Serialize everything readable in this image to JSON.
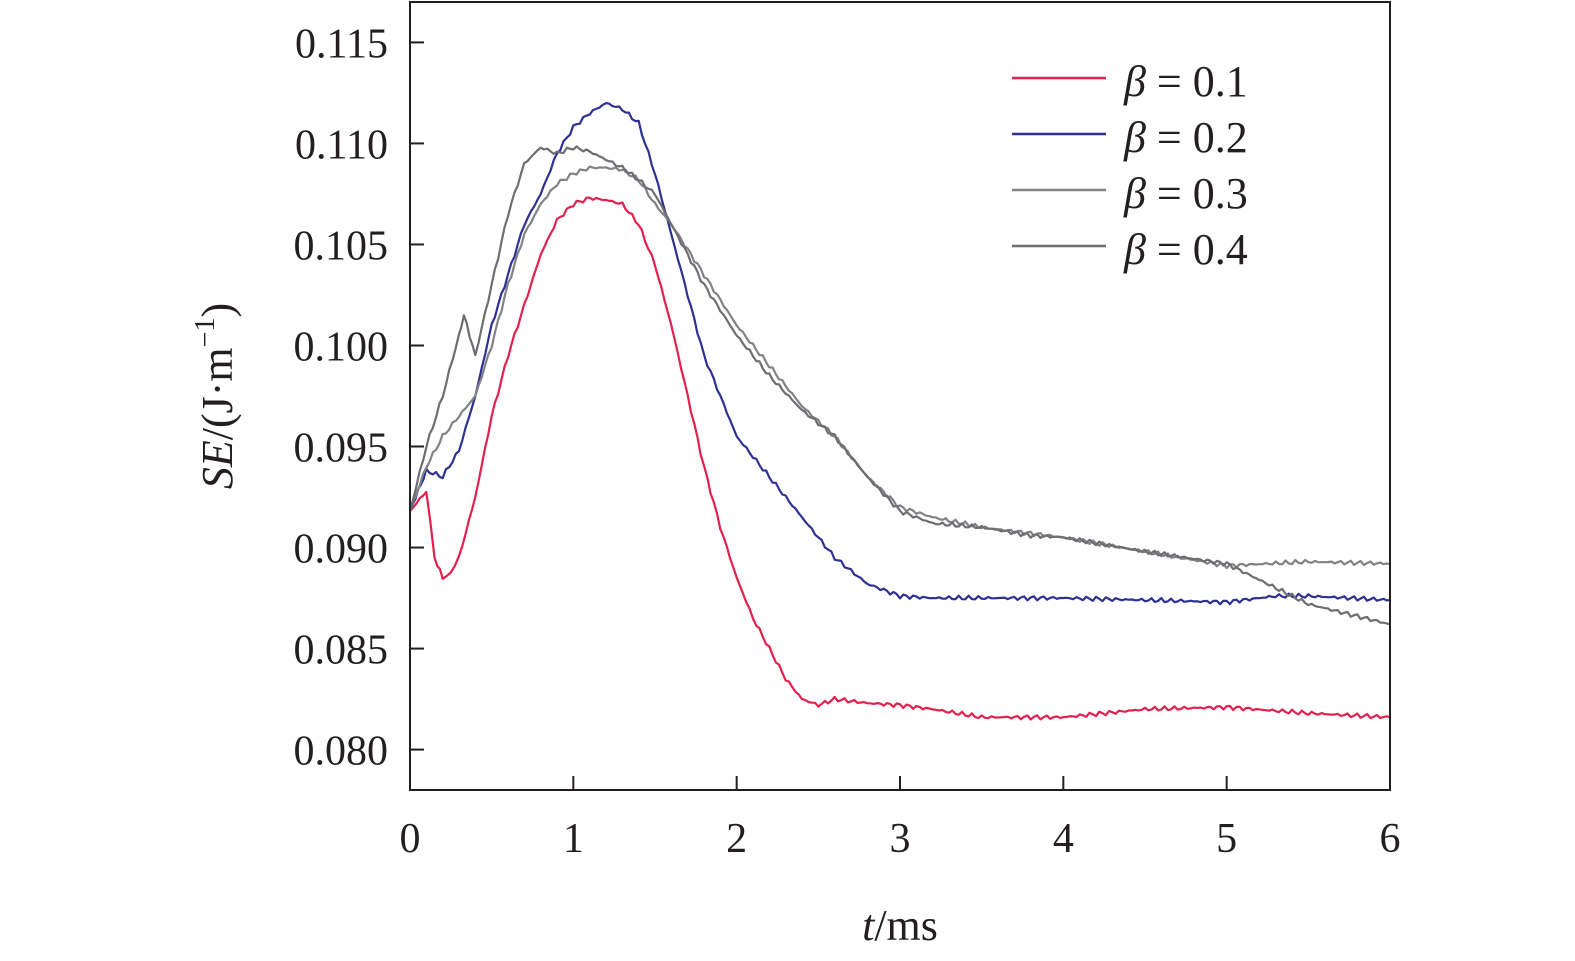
{
  "chart_data": {
    "type": "line",
    "title": "",
    "xlabel": {
      "italic": "t",
      "rest": "/ms"
    },
    "ylabel": {
      "italic": "SE",
      "rest": "/(J·m",
      "sup": "−1",
      "close": ")"
    },
    "xlim": [
      0,
      6
    ],
    "ylim": [
      0.078,
      0.117
    ],
    "xticks": [
      0,
      1,
      2,
      3,
      4,
      5,
      6
    ],
    "xtick_labels": [
      "0",
      "1",
      "2",
      "3",
      "4",
      "5",
      "6"
    ],
    "yticks": [
      0.08,
      0.085,
      0.09,
      0.095,
      0.1,
      0.105,
      0.11,
      0.115
    ],
    "ytick_labels": [
      "0.080",
      "0.085",
      "0.090",
      "0.095",
      "0.100",
      "0.105",
      "0.110",
      "0.115"
    ],
    "grid": false,
    "legend_position": "top-right",
    "series": [
      {
        "name": "β = 0.1",
        "symbol": "β",
        "value_text": " = 0.1",
        "color": "#e4204f",
        "x": [
          0,
          0.1,
          0.15,
          0.2,
          0.25,
          0.3,
          0.4,
          0.5,
          0.6,
          0.7,
          0.8,
          0.9,
          1.0,
          1.1,
          1.2,
          1.3,
          1.4,
          1.5,
          1.6,
          1.7,
          1.8,
          1.9,
          2.0,
          2.1,
          2.2,
          2.3,
          2.4,
          2.5,
          2.6,
          2.8,
          3.0,
          3.2,
          3.5,
          4.0,
          4.5,
          5.0,
          5.5,
          6.0
        ],
        "y": [
          0.0918,
          0.0928,
          0.0895,
          0.0885,
          0.0888,
          0.0895,
          0.0925,
          0.0965,
          0.0995,
          0.102,
          0.1045,
          0.1062,
          0.107,
          0.1073,
          0.1072,
          0.107,
          0.106,
          0.104,
          0.101,
          0.0975,
          0.094,
          0.091,
          0.0885,
          0.0865,
          0.085,
          0.0835,
          0.0825,
          0.0822,
          0.0825,
          0.0823,
          0.0822,
          0.082,
          0.0816,
          0.0816,
          0.082,
          0.0821,
          0.0818,
          0.0816
        ]
      },
      {
        "name": "β = 0.2",
        "symbol": "β",
        "value_text": " = 0.2",
        "color": "#2e3192",
        "x": [
          0,
          0.05,
          0.1,
          0.2,
          0.3,
          0.4,
          0.5,
          0.6,
          0.7,
          0.8,
          0.9,
          1.0,
          1.1,
          1.2,
          1.3,
          1.4,
          1.5,
          1.6,
          1.7,
          1.8,
          1.9,
          2.0,
          2.1,
          2.2,
          2.3,
          2.4,
          2.5,
          2.6,
          2.8,
          3.0,
          3.2,
          3.5,
          4.0,
          4.5,
          5.0,
          5.3,
          5.5,
          6.0
        ],
        "y": [
          0.0918,
          0.0928,
          0.0938,
          0.0935,
          0.0948,
          0.0975,
          0.101,
          0.1035,
          0.106,
          0.1075,
          0.1095,
          0.1108,
          0.1115,
          0.112,
          0.1117,
          0.111,
          0.1085,
          0.1055,
          0.1025,
          0.0995,
          0.0975,
          0.0955,
          0.0945,
          0.0935,
          0.0925,
          0.0915,
          0.0905,
          0.0895,
          0.0882,
          0.0876,
          0.0875,
          0.0875,
          0.0875,
          0.0874,
          0.0873,
          0.0876,
          0.0876,
          0.0874
        ]
      },
      {
        "name": "β = 0.3",
        "symbol": "β",
        "value_text": " = 0.3",
        "color": "#808285",
        "x": [
          0,
          0.1,
          0.2,
          0.3,
          0.4,
          0.5,
          0.6,
          0.7,
          0.8,
          0.9,
          1.0,
          1.1,
          1.2,
          1.3,
          1.4,
          1.5,
          1.6,
          1.8,
          2.0,
          2.2,
          2.4,
          2.6,
          2.8,
          3.0,
          3.2,
          3.5,
          3.8,
          4.0,
          4.5,
          5.0,
          5.5,
          6.0
        ],
        "y": [
          0.0918,
          0.094,
          0.0955,
          0.0965,
          0.0975,
          0.1,
          0.103,
          0.1055,
          0.107,
          0.108,
          0.1085,
          0.1088,
          0.1088,
          0.1087,
          0.1082,
          0.107,
          0.106,
          0.1035,
          0.101,
          0.099,
          0.097,
          0.0955,
          0.0935,
          0.092,
          0.0915,
          0.091,
          0.0907,
          0.0905,
          0.0898,
          0.0891,
          0.0893,
          0.0892
        ]
      },
      {
        "name": "β = 0.4",
        "symbol": "β",
        "value_text": " = 0.4",
        "color": "#6d6e71",
        "x": [
          0,
          0.1,
          0.2,
          0.3,
          0.33,
          0.4,
          0.5,
          0.6,
          0.7,
          0.8,
          0.9,
          1.0,
          1.1,
          1.2,
          1.3,
          1.4,
          1.5,
          1.6,
          1.8,
          2.0,
          2.2,
          2.4,
          2.6,
          2.8,
          3.0,
          3.2,
          3.5,
          3.8,
          4.0,
          4.5,
          5.0,
          5.5,
          6.0
        ],
        "y": [
          0.0918,
          0.095,
          0.0975,
          0.1005,
          0.1015,
          0.0995,
          0.103,
          0.1065,
          0.109,
          0.1098,
          0.1095,
          0.1098,
          0.1096,
          0.1092,
          0.1088,
          0.1082,
          0.1075,
          0.106,
          0.103,
          0.1005,
          0.0985,
          0.0968,
          0.0955,
          0.0935,
          0.0918,
          0.0912,
          0.091,
          0.0906,
          0.0905,
          0.0898,
          0.0892,
          0.0872,
          0.0862
        ]
      }
    ]
  }
}
